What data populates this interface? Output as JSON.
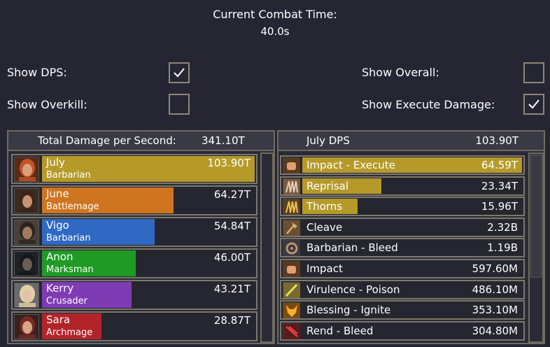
{
  "header": {
    "title": "Current Combat Time:",
    "value": "40.0s"
  },
  "options": {
    "show_dps": {
      "label": "Show DPS:",
      "checked": true
    },
    "show_overkill": {
      "label": "Show Overkill:",
      "checked": false
    },
    "show_overall": {
      "label": "Show Overall:",
      "checked": false
    },
    "show_execute": {
      "label": "Show Execute Damage:",
      "checked": true
    }
  },
  "left_panel": {
    "title": "Total Damage per Second:",
    "total": "341.10T",
    "players": [
      {
        "name": "July",
        "class": "Barbarian",
        "value": "103.90T",
        "fill_fraction": 1.0,
        "color": "#b59a2a",
        "portrait": "portrait-july"
      },
      {
        "name": "June",
        "class": "Battlemage",
        "value": "64.27T",
        "fill_fraction": 0.62,
        "color": "#cf741f",
        "portrait": "portrait-june"
      },
      {
        "name": "Vigo",
        "class": "Barbarian",
        "value": "54.84T",
        "fill_fraction": 0.53,
        "color": "#2f69c4",
        "portrait": "portrait-vigo"
      },
      {
        "name": "Anon",
        "class": "Marksman",
        "value": "46.00T",
        "fill_fraction": 0.44,
        "color": "#1f9a25",
        "portrait": "portrait-anon"
      },
      {
        "name": "Kerry",
        "class": "Crusader",
        "value": "43.21T",
        "fill_fraction": 0.42,
        "color": "#7f3bb4",
        "portrait": "portrait-kerry"
      },
      {
        "name": "Sara",
        "class": "Archmage",
        "value": "28.87T",
        "fill_fraction": 0.28,
        "color": "#b3242a",
        "portrait": "portrait-sara"
      }
    ]
  },
  "right_panel": {
    "title": "July DPS",
    "total": "103.90T",
    "skills": [
      {
        "name": "Impact - Execute",
        "value": "64.59T",
        "fill_fraction": 1.0,
        "icon": "fist-icon"
      },
      {
        "name": "Reprisal",
        "value": "23.34T",
        "fill_fraction": 0.36,
        "icon": "claw-icon"
      },
      {
        "name": "Thorns",
        "value": "15.96T",
        "fill_fraction": 0.25,
        "icon": "thorns-icon"
      },
      {
        "name": "Cleave",
        "value": "2.32B",
        "fill_fraction": 0,
        "icon": "axe-icon"
      },
      {
        "name": "Barbarian - Bleed",
        "value": "1.19B",
        "fill_fraction": 0,
        "icon": "gear-icon"
      },
      {
        "name": "Impact",
        "value": "597.60M",
        "fill_fraction": 0,
        "icon": "fist-icon"
      },
      {
        "name": "Virulence - Poison",
        "value": "486.10M",
        "fill_fraction": 0,
        "icon": "sword-icon"
      },
      {
        "name": "Blessing - Ignite",
        "value": "353.10M",
        "fill_fraction": 0,
        "icon": "wolf-icon"
      },
      {
        "name": "Rend - Bleed",
        "value": "304.80M",
        "fill_fraction": 0,
        "icon": "slash-icon"
      }
    ]
  },
  "colors": {
    "skill_fill": "#b59a2a",
    "background": "#262633"
  }
}
